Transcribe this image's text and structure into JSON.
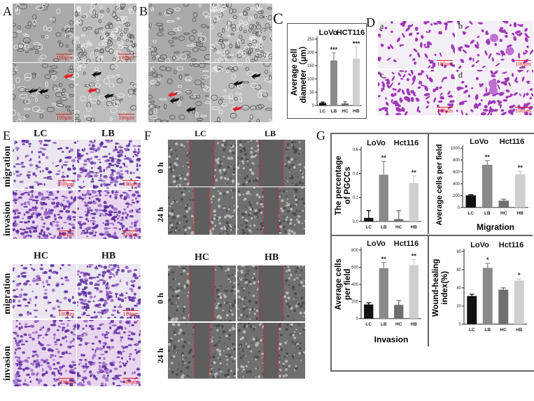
{
  "panel_labels": {
    "A": "A",
    "B": "B",
    "C": "C",
    "D": "D",
    "E": "E",
    "F": "F",
    "G": "G"
  },
  "sublabels": [
    "a",
    "b",
    "c",
    "d"
  ],
  "scale_bar": "100μm",
  "panel_E": {
    "top_cols": [
      "LC",
      "LB"
    ],
    "bottom_cols": [
      "HC",
      "HB"
    ],
    "rows": [
      "migration",
      "invasion"
    ]
  },
  "panel_F": {
    "top_cols": [
      "LC",
      "LB"
    ],
    "bottom_cols": [
      "HC",
      "HB"
    ],
    "rows": [
      "0 h",
      "24 h"
    ]
  },
  "colors": {
    "LC": "#111111",
    "LB": "#8a8a8a",
    "HC": "#6f6f6f",
    "HB": "#cfcfcf",
    "arrow_red": "#e02020",
    "wound_line": "#e02020"
  },
  "chart_data": [
    {
      "id": "C",
      "type": "bar",
      "panel": "C",
      "categories": [
        "LC",
        "LB",
        "HC",
        "HB"
      ],
      "values": [
        10,
        170,
        8,
        176
      ],
      "error_upper": [
        13,
        198,
        14,
        220
      ],
      "significance": [
        "",
        "***",
        "",
        "***"
      ],
      "groups": [
        "LoVo",
        "HCT116"
      ],
      "ylabel": "Average cell diameter（μm）",
      "xlabel": "",
      "ylim": [
        0,
        250
      ],
      "yticks": [
        0,
        50,
        100,
        150,
        200,
        250
      ]
    },
    {
      "id": "Ga",
      "type": "bar",
      "panel": "a",
      "categories": [
        "LC",
        "LB",
        "HC",
        "HB"
      ],
      "values": [
        0.03,
        0.39,
        0.02,
        0.32
      ],
      "error_upper": [
        0.09,
        0.5,
        0.09,
        0.38
      ],
      "significance": [
        "",
        "**",
        "",
        "**"
      ],
      "groups": [
        "LoVo",
        "Hct116"
      ],
      "ylabel": "The percentage of PGCCs",
      "xlabel": "",
      "ylim": [
        0,
        0.6
      ],
      "yticks": [
        "0.0",
        "0.2",
        "0.4",
        "0.6"
      ]
    },
    {
      "id": "Gb",
      "type": "bar",
      "panel": "b",
      "categories": [
        "LC",
        "LB",
        "HC",
        "HB"
      ],
      "values": [
        205,
        720,
        115,
        560
      ],
      "error_upper": [
        215,
        790,
        140,
        610
      ],
      "significance": [
        "",
        "**",
        "",
        "**"
      ],
      "groups": [
        "LoVo",
        "Hct116"
      ],
      "ylabel": "Average cells per field",
      "xlabel": "Migration",
      "ylim": [
        0,
        1000
      ],
      "yticks": [
        0,
        200,
        400,
        600,
        800,
        1000
      ]
    },
    {
      "id": "Gc",
      "type": "bar",
      "panel": "c",
      "categories": [
        "LC",
        "LB",
        "HC",
        "HB"
      ],
      "values": [
        165,
        590,
        160,
        625
      ],
      "error_upper": [
        185,
        655,
        210,
        690
      ],
      "significance": [
        "",
        "**",
        "",
        "**"
      ],
      "groups": [
        "LoVo",
        "Hct116"
      ],
      "ylabel": "Average cells per field",
      "xlabel": "Invasion",
      "ylim": [
        0,
        800
      ],
      "yticks": [
        0,
        200,
        400,
        600,
        800
      ]
    },
    {
      "id": "Gd",
      "type": "bar",
      "panel": "d",
      "categories": [
        "LC",
        "LB",
        "HC",
        "HB"
      ],
      "values": [
        31,
        62,
        38,
        48
      ],
      "error_upper": [
        33,
        67,
        40,
        50
      ],
      "significance": [
        "",
        "*",
        "",
        "*"
      ],
      "groups": [
        "LoVo",
        "Hct116"
      ],
      "ylabel": "Wound-healing index(%)",
      "xlabel": "",
      "ylim": [
        0,
        80
      ],
      "yticks": [
        0,
        20,
        40,
        60,
        80
      ]
    }
  ]
}
